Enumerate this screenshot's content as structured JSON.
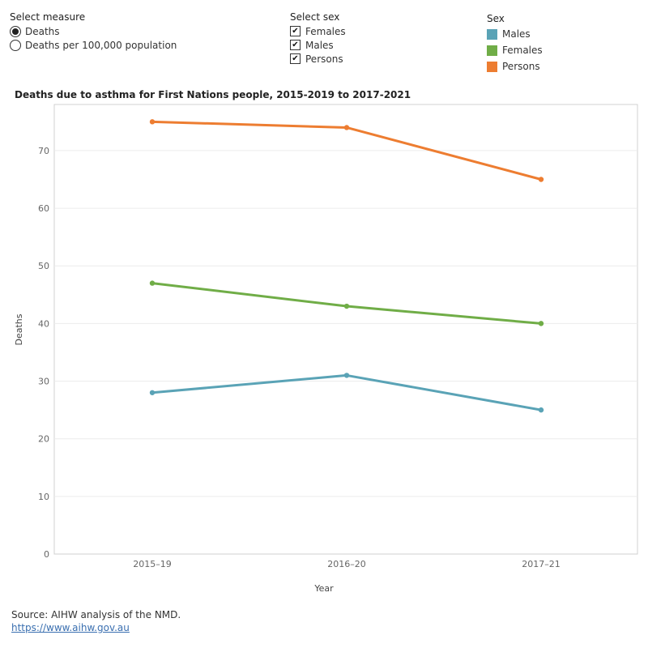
{
  "controls": {
    "measure": {
      "title": "Select measure",
      "options": [
        {
          "label": "Deaths",
          "selected": true
        },
        {
          "label": "Deaths per 100,000 population",
          "selected": false
        }
      ]
    },
    "sex": {
      "title": "Select sex",
      "options": [
        {
          "label": "Females",
          "checked": true
        },
        {
          "label": "Males",
          "checked": true
        },
        {
          "label": "Persons",
          "checked": true
        }
      ],
      "check_glyph": "✔"
    }
  },
  "legend": {
    "title": "Sex",
    "items": [
      {
        "label": "Males",
        "color": "#5aa3b6"
      },
      {
        "label": "Females",
        "color": "#70ad47"
      },
      {
        "label": "Persons",
        "color": "#ed7d31"
      }
    ]
  },
  "chart_data": {
    "type": "line",
    "title": "Deaths due to asthma for First Nations people, 2015-2019 to 2017-2021",
    "xlabel": "Year",
    "ylabel": "Deaths",
    "categories": [
      "2015–19",
      "2016–20",
      "2017–21"
    ],
    "ylim": [
      0,
      78
    ],
    "yticks": [
      0,
      10,
      20,
      30,
      40,
      50,
      60,
      70
    ],
    "grid": true,
    "series": [
      {
        "name": "Persons",
        "color": "#ed7d31",
        "values": [
          75,
          74,
          65
        ]
      },
      {
        "name": "Females",
        "color": "#70ad47",
        "values": [
          47,
          43,
          40
        ]
      },
      {
        "name": "Males",
        "color": "#5aa3b6",
        "values": [
          28,
          31,
          25
        ]
      }
    ]
  },
  "footer": {
    "source": "Source: AIHW analysis of the NMD.",
    "link": "https://www.aihw.gov.au"
  }
}
